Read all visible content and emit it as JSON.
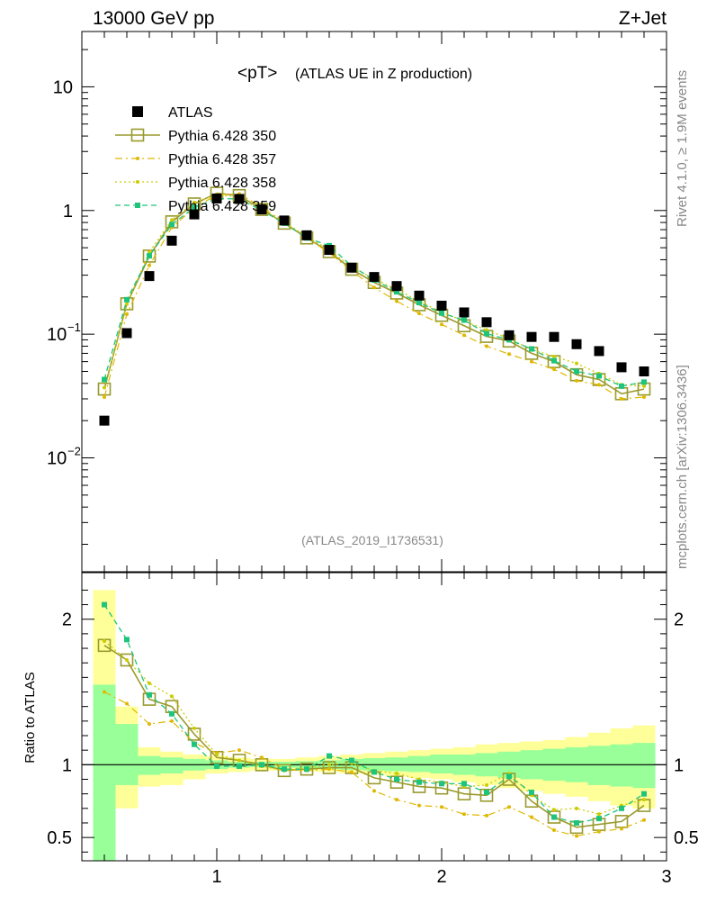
{
  "header": {
    "left": "13000 GeV pp",
    "right": "Z+Jet"
  },
  "side_labels": {
    "rivet": "Rivet 4.1.0, ≥ 1.9M events",
    "source": "mcplots.cern.ch [arXiv:1306.3436]"
  },
  "colors": {
    "atlas": "#000000",
    "p350": "#9a9a2e",
    "p357": "#e0b800",
    "p358": "#cccc00",
    "p359": "#1ec47c",
    "band_yellow": "#ffff99",
    "band_green": "#99ff99"
  },
  "chart_data": [
    {
      "type": "scatter",
      "title": "<pT>",
      "subtitle": "(ATLAS UE in Z production)",
      "analysis_id": "(ATLAS_2019_I1736531)",
      "yscale": "log",
      "xlim": [
        0.4,
        3.0
      ],
      "ylim": [
        0.0012,
        28
      ],
      "y_ticks": [
        {
          "value": 0.01,
          "base": "10",
          "exp": "−2"
        },
        {
          "value": 0.1,
          "base": "10",
          "exp": "−1"
        },
        {
          "value": 1,
          "base": "1",
          "exp": ""
        },
        {
          "value": 10,
          "base": "10",
          "exp": ""
        }
      ],
      "legend": [
        {
          "label": "ATLAS",
          "key": "atlas"
        },
        {
          "label": "Pythia 6.428 350",
          "key": "p350"
        },
        {
          "label": "Pythia 6.428 357",
          "key": "p357"
        },
        {
          "label": "Pythia 6.428 358",
          "key": "p358"
        },
        {
          "label": "Pythia 6.428 359",
          "key": "p359"
        }
      ],
      "x": [
        0.5,
        0.6,
        0.7,
        0.8,
        0.9,
        1.0,
        1.1,
        1.2,
        1.3,
        1.4,
        1.5,
        1.6,
        1.7,
        1.8,
        1.9,
        2.0,
        2.1,
        2.2,
        2.3,
        2.4,
        2.5,
        2.6,
        2.7,
        2.8,
        2.9
      ],
      "series": [
        {
          "name": "ATLAS",
          "key": "atlas",
          "values": [
            0.02,
            0.102,
            0.295,
            0.57,
            0.93,
            1.25,
            1.24,
            1.02,
            0.83,
            0.63,
            0.48,
            0.345,
            0.29,
            0.245,
            0.205,
            0.17,
            0.15,
            0.125,
            0.098,
            0.095,
            0.095,
            0.083,
            0.073,
            0.054,
            0.05
          ]
        },
        {
          "name": "Pythia 6.428 350",
          "key": "p350",
          "values": [
            0.036,
            0.176,
            0.428,
            0.81,
            1.13,
            1.38,
            1.32,
            1.02,
            0.79,
            0.6,
            0.465,
            0.335,
            0.262,
            0.215,
            0.173,
            0.142,
            0.117,
            0.096,
            0.088,
            0.07,
            0.06,
            0.047,
            0.043,
            0.033,
            0.036
          ]
        },
        {
          "name": "Pythia 6.428 357",
          "key": "p357",
          "values": [
            0.031,
            0.145,
            0.36,
            0.73,
            1.05,
            1.34,
            1.36,
            1.07,
            0.8,
            0.6,
            0.455,
            0.325,
            0.238,
            0.185,
            0.147,
            0.12,
            0.098,
            0.08,
            0.069,
            0.06,
            0.052,
            0.042,
            0.039,
            0.03,
            0.031
          ]
        },
        {
          "name": "Pythia 6.428 358",
          "key": "p358",
          "values": [
            0.037,
            0.175,
            0.46,
            0.84,
            1.16,
            1.34,
            1.28,
            1.0,
            0.8,
            0.62,
            0.48,
            0.35,
            0.28,
            0.23,
            0.185,
            0.15,
            0.128,
            0.108,
            0.092,
            0.075,
            0.066,
            0.058,
            0.048,
            0.039,
            0.038
          ]
        },
        {
          "name": "Pythia 6.428 359",
          "key": "p359",
          "values": [
            0.043,
            0.19,
            0.43,
            0.77,
            1.06,
            1.25,
            1.24,
            1.0,
            0.79,
            0.6,
            0.52,
            0.355,
            0.275,
            0.22,
            0.18,
            0.148,
            0.13,
            0.101,
            0.09,
            0.076,
            0.061,
            0.05,
            0.046,
            0.038,
            0.041
          ]
        }
      ]
    },
    {
      "type": "scatter",
      "ylabel": "Ratio to ATLAS",
      "xlim": [
        0.4,
        3.0
      ],
      "ylim": [
        0.34,
        2.32
      ],
      "x_ticks": [
        1,
        2,
        3
      ],
      "y_ticks": [
        0.5,
        1,
        2
      ],
      "reference": 1,
      "x": [
        0.5,
        0.6,
        0.7,
        0.8,
        0.9,
        1.0,
        1.1,
        1.2,
        1.3,
        1.4,
        1.5,
        1.6,
        1.7,
        1.8,
        1.9,
        2.0,
        2.1,
        2.2,
        2.3,
        2.4,
        2.5,
        2.6,
        2.7,
        2.8,
        2.9
      ],
      "bands": {
        "edges": [
          0.45,
          0.55,
          0.65,
          0.75,
          0.85,
          0.95,
          1.05,
          1.15,
          1.25,
          1.35,
          1.45,
          1.55,
          1.65,
          1.75,
          1.85,
          1.95,
          2.05,
          2.15,
          2.25,
          2.35,
          2.45,
          2.55,
          2.65,
          2.75,
          2.85,
          2.95
        ],
        "yellow": [
          [
            0.05,
            2.2
          ],
          [
            0.7,
            1.4
          ],
          [
            0.85,
            1.12
          ],
          [
            0.86,
            1.09
          ],
          [
            0.9,
            1.07
          ],
          [
            0.94,
            1.06
          ],
          [
            0.95,
            1.05
          ],
          [
            0.96,
            1.04
          ],
          [
            0.96,
            1.04
          ],
          [
            0.955,
            1.05
          ],
          [
            0.95,
            1.06
          ],
          [
            0.94,
            1.07
          ],
          [
            0.93,
            1.08
          ],
          [
            0.92,
            1.09
          ],
          [
            0.91,
            1.1
          ],
          [
            0.9,
            1.11
          ],
          [
            0.88,
            1.12
          ],
          [
            0.86,
            1.14
          ],
          [
            0.84,
            1.15
          ],
          [
            0.82,
            1.16
          ],
          [
            0.8,
            1.17
          ],
          [
            0.78,
            1.19
          ],
          [
            0.75,
            1.22
          ],
          [
            0.72,
            1.25
          ],
          [
            0.7,
            1.27
          ]
        ],
        "green": [
          [
            0.05,
            1.55
          ],
          [
            0.86,
            1.28
          ],
          [
            0.93,
            1.06
          ],
          [
            0.94,
            1.05
          ],
          [
            0.96,
            1.04
          ],
          [
            0.97,
            1.03
          ],
          [
            0.98,
            1.02
          ],
          [
            0.985,
            1.02
          ],
          [
            0.98,
            1.02
          ],
          [
            0.975,
            1.025
          ],
          [
            0.97,
            1.03
          ],
          [
            0.965,
            1.04
          ],
          [
            0.96,
            1.045
          ],
          [
            0.955,
            1.05
          ],
          [
            0.95,
            1.06
          ],
          [
            0.94,
            1.07
          ],
          [
            0.93,
            1.07
          ],
          [
            0.92,
            1.08
          ],
          [
            0.91,
            1.09
          ],
          [
            0.9,
            1.1
          ],
          [
            0.89,
            1.11
          ],
          [
            0.88,
            1.12
          ],
          [
            0.86,
            1.13
          ],
          [
            0.85,
            1.14
          ],
          [
            0.84,
            1.15
          ]
        ]
      },
      "series": [
        {
          "name": "Pythia 6.428 350",
          "key": "p350",
          "values": [
            1.82,
            1.72,
            1.45,
            1.4,
            1.21,
            1.05,
            1.03,
            1.0,
            0.96,
            0.97,
            0.98,
            0.98,
            0.91,
            0.88,
            0.85,
            0.84,
            0.8,
            0.79,
            0.9,
            0.75,
            0.64,
            0.57,
            0.59,
            0.61,
            0.72
          ]
        },
        {
          "name": "Pythia 6.428 357",
          "key": "p357",
          "values": [
            1.5,
            1.42,
            1.28,
            1.3,
            1.15,
            1.08,
            1.1,
            1.05,
            0.97,
            0.96,
            0.97,
            0.95,
            0.82,
            0.76,
            0.72,
            0.71,
            0.66,
            0.65,
            0.71,
            0.64,
            0.55,
            0.51,
            0.54,
            0.56,
            0.62
          ]
        },
        {
          "name": "Pythia 6.428 358",
          "key": "p358",
          "values": [
            1.85,
            1.72,
            1.56,
            1.47,
            1.25,
            1.07,
            1.03,
            0.99,
            0.96,
            0.98,
            1.0,
            1.01,
            0.96,
            0.94,
            0.9,
            0.88,
            0.85,
            0.86,
            0.94,
            0.79,
            0.69,
            0.7,
            0.66,
            0.72,
            0.76
          ]
        },
        {
          "name": "Pythia 6.428 359",
          "key": "p359",
          "values": [
            2.1,
            1.86,
            1.48,
            1.35,
            1.14,
            0.99,
            0.99,
            1.0,
            0.97,
            0.97,
            1.06,
            1.03,
            0.95,
            0.9,
            0.88,
            0.87,
            0.87,
            0.81,
            0.92,
            0.81,
            0.64,
            0.6,
            0.63,
            0.7,
            0.8
          ]
        }
      ]
    }
  ]
}
